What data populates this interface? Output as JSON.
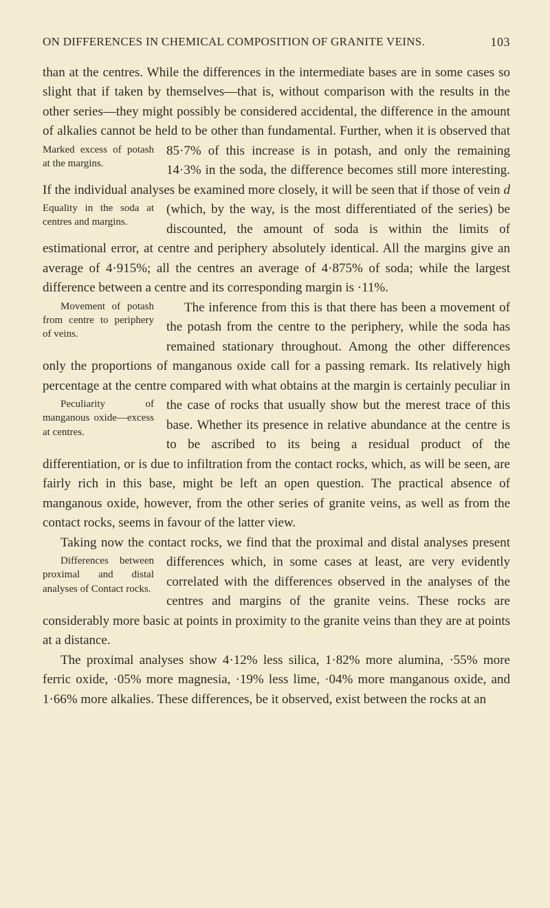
{
  "header": {
    "running_head": "ON DIFFERENCES IN CHEMICAL COMPOSITION OF GRANITE VEINS.",
    "page_number": "103"
  },
  "marginals": {
    "m1": "Marked excess of potash at the margins.",
    "m2": "Equality in the soda at centres and margins.",
    "m3": "Movement of potash from centre to periphery of veins.",
    "m4": "Peculiarity of manganous oxide—excess at centres.",
    "m5": "Differences between proximal and distal analyses of Contact rocks."
  },
  "text": {
    "p1a": "than at the centres. While the differences in the intermediate bases are in some cases so slight that if taken by themselves—that is, without comparison with the results in the other series—they might possibly be considered accidental, the difference in the amount of alkalies cannot be held to be other than funda­mental. Further, when it is observed that 85·7% of this ",
    "p1b": "increase is in potash, and only the remaining 14·3% in the soda, the difference becomes still more interesting. If the individual ",
    "p1c": "analyses be examined more closely, it will be seen that if those of vein ",
    "p1c_i": "d",
    "p1c2": " (which, by the way, is the most differentiated of the ",
    "p1d": "series) be discounted, the amount of soda is within the limits of estimational error, at centre and periphery absolutely identical. ",
    "p1e": "All the margins give an average of 4·915%; all the centres an average of 4·875% of soda; while the largest difference between a centre and its corresponding margin is ·11%.",
    "p2a": "The inference from this is that there has been a movement of ",
    "p2b": "the potash from the centre to the periphery, while the soda has remained stationary throughout. Among the other differences only the proportions of manganous oxide ",
    "p2c": "call for a passing remark. Its relatively high percentage at the centre compared with what obtains at the margin is ",
    "p2d": "certainly peculiar in the case of rocks that usually show but the merest trace of this base. Whether its presence in relative ",
    "p2e": "abundance at the centre is to be ascribed to its being a residual product of the differentiation, or is due to infiltration from the contact rocks, which, as will be seen, are fairly rich in this base, might be left an open question. The practical absence of manganous oxide, however, from the other series of granite veins, as well as from the contact rocks, seems in favour of the latter view.",
    "p3a": "Taking now the contact rocks, we find that the proximal and distal analyses present differences which, in some cases at least, ",
    "p3b": "are very evidently correlated with the differ­ences observed in the analyses of the centres and margins of the granite veins. These rocks are considerably more basic at points ",
    "p3c": "in proximity to the granite veins than they are at points at a distance.",
    "p4": "The proximal analyses show 4·12% less silica, 1·82% more alumina, ·55% more ferric oxide, ·05% more magnesia, ·19% less lime, ·04% more manganous oxide, and 1·66% more alkalies. These differences, be it observed, exist between the rocks at an"
  }
}
